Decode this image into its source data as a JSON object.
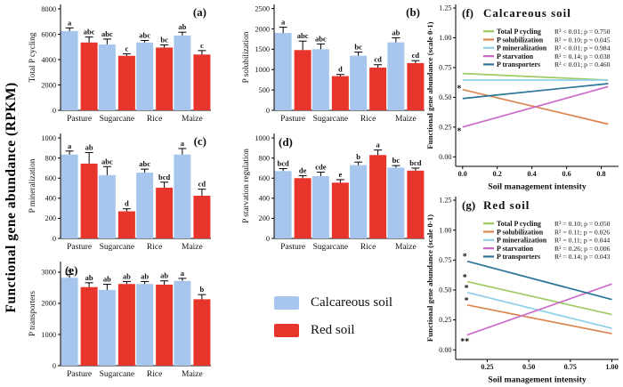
{
  "figure": {
    "y_axis_label": "Functional gene abundance (RPKM)"
  },
  "legend": {
    "items": [
      {
        "label": "Calcareous soil",
        "color": "#a6c6ee"
      },
      {
        "label": "Red soil",
        "color": "#e8352b"
      }
    ]
  },
  "chart_data": [
    {
      "type": "bar",
      "panel": "(a)",
      "panel_corner": "tr",
      "ylabel": "Total P cycling",
      "categories": [
        "Pasture",
        "Sugarcane",
        "Rice",
        "Maize"
      ],
      "ylim": [
        0,
        8350
      ],
      "yticks": [
        0,
        2000,
        4000,
        6000,
        8000
      ],
      "series": [
        {
          "name": "Calcareous soil",
          "color": "#a6c6ee",
          "values": [
            6250,
            5200,
            5350,
            5900
          ],
          "errors": [
            250,
            420,
            160,
            260
          ],
          "letters": [
            "a",
            "abc",
            "abc",
            "ab"
          ]
        },
        {
          "name": "Red soil",
          "color": "#e8352b",
          "values": [
            5350,
            4300,
            4950,
            4400
          ],
          "errors": [
            430,
            160,
            210,
            310
          ],
          "letters": [
            "abc",
            "c",
            "bc",
            "c"
          ]
        }
      ]
    },
    {
      "type": "bar",
      "panel": "(b)",
      "panel_corner": "tr",
      "ylabel": "P solubilization",
      "categories": [
        "Pasture",
        "Sugarcane",
        "Rice",
        "Maize"
      ],
      "ylim": [
        0,
        2600
      ],
      "yticks": [
        0,
        500,
        1000,
        1500,
        2000,
        2500
      ],
      "series": [
        {
          "name": "Calcareous soil",
          "color": "#a6c6ee",
          "values": [
            1900,
            1500,
            1340,
            1670
          ],
          "errors": [
            140,
            130,
            90,
            110
          ],
          "letters": [
            "a",
            "abc",
            "bc",
            "ab"
          ]
        },
        {
          "name": "Red soil",
          "color": "#e8352b",
          "values": [
            1480,
            840,
            1050,
            1160
          ],
          "errors": [
            220,
            40,
            70,
            60
          ],
          "letters": [
            "abc",
            "d",
            "cd",
            "cd"
          ]
        }
      ]
    },
    {
      "type": "bar",
      "panel": "(c)",
      "panel_corner": "tr",
      "ylabel": "P mineralization",
      "categories": [
        "Pasture",
        "Sugarcane",
        "Rice",
        "Maize"
      ],
      "ylim": [
        0,
        1045
      ],
      "yticks": [
        0,
        200,
        400,
        600,
        800,
        1000
      ],
      "series": [
        {
          "name": "Calcareous soil",
          "color": "#a6c6ee",
          "values": [
            835,
            630,
            655,
            835
          ],
          "errors": [
            35,
            85,
            35,
            60
          ],
          "letters": [
            "a",
            "abc",
            "abc",
            "a"
          ]
        },
        {
          "name": "Red soil",
          "color": "#e8352b",
          "values": [
            745,
            270,
            505,
            425
          ],
          "errors": [
            110,
            25,
            55,
            65
          ],
          "letters": [
            "ab",
            "d",
            "bcd",
            "cd"
          ]
        }
      ]
    },
    {
      "type": "bar",
      "panel": "(d)",
      "panel_corner": "tl",
      "ylabel": "P starvation regulation",
      "categories": [
        "Pasture",
        "Sugarcane",
        "Rice",
        "Maize"
      ],
      "ylim": [
        0,
        1045
      ],
      "yticks": [
        0,
        200,
        400,
        600,
        800,
        1000
      ],
      "series": [
        {
          "name": "Calcareous soil",
          "color": "#a6c6ee",
          "values": [
            670,
            620,
            730,
            705
          ],
          "errors": [
            25,
            40,
            30,
            20
          ],
          "letters": [
            "bcd",
            "cde",
            "b",
            "bc"
          ]
        },
        {
          "name": "Red soil",
          "color": "#e8352b",
          "values": [
            600,
            555,
            830,
            675
          ],
          "errors": [
            25,
            30,
            50,
            25
          ],
          "letters": [
            "de",
            "e",
            "a",
            "bcd"
          ]
        }
      ]
    },
    {
      "type": "bar",
      "panel": "(e)",
      "panel_corner": "tl",
      "ylabel": "P transporters",
      "categories": [
        "Pasture",
        "Sugarcane",
        "Rice",
        "Maize"
      ],
      "ylim": [
        0,
        3340
      ],
      "yticks": [
        0,
        1000,
        2000,
        3000
      ],
      "series": [
        {
          "name": "Calcareous soil",
          "color": "#a6c6ee",
          "values": [
            2820,
            2430,
            2620,
            2720
          ],
          "errors": [
            110,
            180,
            80,
            80
          ],
          "letters": [
            "a",
            "ab",
            "ab",
            "a"
          ]
        },
        {
          "name": "Red soil",
          "color": "#e8352b",
          "values": [
            2520,
            2620,
            2600,
            2130
          ],
          "errors": [
            140,
            80,
            120,
            150
          ],
          "letters": [
            "ab",
            "ab",
            "ab",
            "b"
          ]
        }
      ]
    },
    {
      "type": "line",
      "panel": "(f)",
      "title": "Calcareous soil",
      "xlabel": "Soil management intensity",
      "ylabel": "Functional gene abundance (scale 0-1)",
      "xlim": [
        -0.04,
        0.9
      ],
      "xticks": [
        0.0,
        0.2,
        0.4,
        0.6,
        0.8
      ],
      "xtick_decimals": 1,
      "ylim": [
        -0.08,
        1.28
      ],
      "yticks": [
        0.0,
        0.25,
        0.5,
        0.75,
        1.0,
        1.25
      ],
      "ytick_decimals": 2,
      "series": [
        {
          "name": "Total P cycling",
          "color": "#9ecb63",
          "stats": "R² < 0.01; p = 0.750",
          "x": [
            0.0,
            0.84
          ],
          "y": [
            0.7,
            0.645
          ]
        },
        {
          "name": "P solubilization",
          "color": "#dc8452",
          "stats": "R² = 0.10; p = 0.045",
          "x": [
            0.0,
            0.84
          ],
          "y": [
            0.565,
            0.275
          ]
        },
        {
          "name": "P mineralization",
          "color": "#8ed0e8",
          "stats": "R² < 0.01; p = 0.984",
          "x": [
            0.0,
            0.84
          ],
          "y": [
            0.645,
            0.645
          ]
        },
        {
          "name": "P starvation",
          "color": "#cb6bc9",
          "stats": "R² = 0.14; p = 0.038",
          "x": [
            0.0,
            0.84
          ],
          "y": [
            0.25,
            0.59
          ]
        },
        {
          "name": "P transporters",
          "color": "#2b7499",
          "stats": "R² < 0.01; p = 0.460",
          "x": [
            0.0,
            0.84
          ],
          "y": [
            0.49,
            0.615
          ]
        }
      ],
      "annotations": [
        {
          "text": "*",
          "x": -0.02,
          "y": 0.575
        },
        {
          "text": "*",
          "x": -0.02,
          "y": 0.215
        }
      ]
    },
    {
      "type": "line",
      "panel": "(g)",
      "title": "Red soil",
      "xlabel": "Soil management intensity",
      "ylabel": "Functional gene abundance (scale 0-1)",
      "xlim": [
        0.06,
        1.04
      ],
      "xticks": [
        0.25,
        0.5,
        0.75,
        1.0
      ],
      "xtick_decimals": 2,
      "ylim": [
        -0.08,
        1.28
      ],
      "yticks": [
        0.0,
        0.25,
        0.5,
        0.75,
        1.0,
        1.25
      ],
      "ytick_decimals": 2,
      "series": [
        {
          "name": "Total P cycling",
          "color": "#9ecb63",
          "stats": "R² = 0.10; p = 0.050",
          "x": [
            0.13,
            1.0
          ],
          "y": [
            0.57,
            0.295
          ]
        },
        {
          "name": "P solubilization",
          "color": "#dc8452",
          "stats": "R² = 0.11; p = 0.026",
          "x": [
            0.13,
            1.0
          ],
          "y": [
            0.375,
            0.135
          ]
        },
        {
          "name": "P mineralization",
          "color": "#8ed0e8",
          "stats": "R² = 0.11; p = 0.044",
          "x": [
            0.13,
            1.0
          ],
          "y": [
            0.48,
            0.18
          ]
        },
        {
          "name": "P starvation",
          "color": "#cb6bc9",
          "stats": "R² = 0.26; p = 0.006",
          "x": [
            0.13,
            1.0
          ],
          "y": [
            0.125,
            0.55
          ]
        },
        {
          "name": "P transporters",
          "color": "#2b7499",
          "stats": "R² = 0.14; p = 0.043",
          "x": [
            0.13,
            1.0
          ],
          "y": [
            0.74,
            0.42
          ]
        }
      ],
      "annotations": [
        {
          "text": "*",
          "x": 0.115,
          "y": 0.78
        },
        {
          "text": "*",
          "x": 0.115,
          "y": 0.605
        },
        {
          "text": "*",
          "x": 0.125,
          "y": 0.515
        },
        {
          "text": "*",
          "x": 0.125,
          "y": 0.41
        },
        {
          "text": "**",
          "x": 0.115,
          "y": 0.068
        }
      ]
    }
  ]
}
